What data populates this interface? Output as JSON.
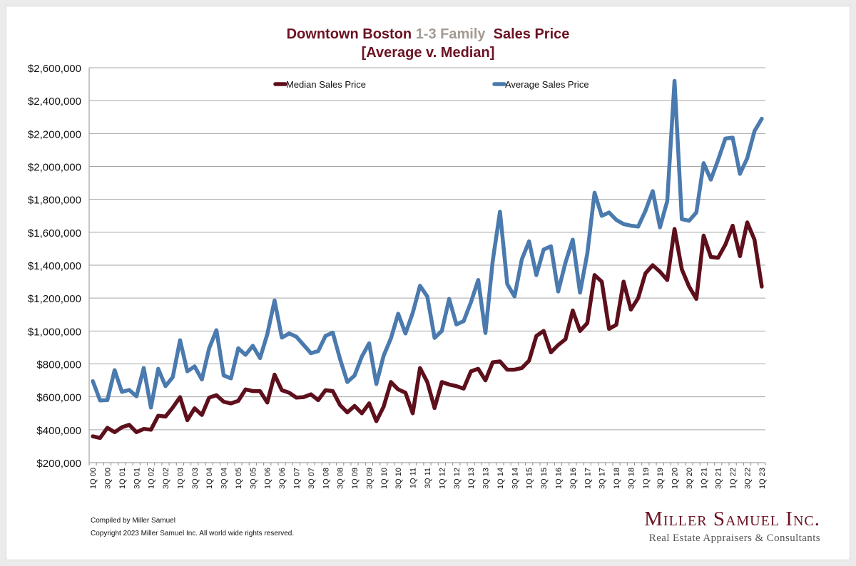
{
  "title": {
    "part1": "Downtown Boston ",
    "part2": "1-3 Family",
    "part3": "  Sales Price",
    "line2": "[Average v. Median]"
  },
  "footer": {
    "compiled": "Compiled by Miller Samuel",
    "copyright": "Copyright 2023 Miller Samuel Inc.  All world wide rights reserved."
  },
  "brand": {
    "name": "Miller Samuel Inc.",
    "tagline": "Real Estate Appraisers & Consultants"
  },
  "colors": {
    "median": "#5e0f1c",
    "average": "#4a7aae",
    "title": "#6b1222",
    "title_accent": "#a39a92",
    "grid": "#a6a6a6"
  },
  "chart_data": {
    "type": "line",
    "title": "Downtown Boston 1-3 Family  Sales Price [Average v. Median]",
    "xlabel": "",
    "ylabel": "",
    "ylim": [
      200000,
      2600000
    ],
    "yticks": [
      200000,
      400000,
      600000,
      800000,
      1000000,
      1200000,
      1400000,
      1600000,
      1800000,
      2000000,
      2200000,
      2400000,
      2600000
    ],
    "ytick_labels": [
      "$200,000",
      "$400,000",
      "$600,000",
      "$800,000",
      "$1,000,000",
      "$1,200,000",
      "$1,400,000",
      "$1,600,000",
      "$1,800,000",
      "$2,000,000",
      "$2,200,000",
      "$2,400,000",
      "$2,600,000"
    ],
    "grid": true,
    "legend_position": "top",
    "x_tick_labels": [
      "1Q 00",
      "3Q 00",
      "1Q 01",
      "3Q 01",
      "1Q 02",
      "3Q 02",
      "1Q 03",
      "3Q 03",
      "1Q 04",
      "3Q 04",
      "1Q 05",
      "3Q 05",
      "1Q 06",
      "3Q 06",
      "1Q 07",
      "3Q 07",
      "1Q 08",
      "3Q 08",
      "1Q 09",
      "3Q 09",
      "1Q 10",
      "3Q 10",
      "1Q 11",
      "3Q 11",
      "1Q 12",
      "3Q 12",
      "1Q 13",
      "3Q 13",
      "1Q 14",
      "3Q 14",
      "1Q 15",
      "3Q 15",
      "1Q 16",
      "3Q 16",
      "1Q 17",
      "3Q 17",
      "1Q 18",
      "3Q 18",
      "1Q 19",
      "3Q 19",
      "1Q 20",
      "3Q 20",
      "1Q 21",
      "3Q 21",
      "1Q 22",
      "3Q 22",
      "1Q 23"
    ],
    "series": [
      {
        "name": "Median Sales Price",
        "values": [
          360000,
          350000,
          412000,
          385000,
          415000,
          430000,
          385000,
          405000,
          400000,
          485000,
          480000,
          535000,
          598000,
          458000,
          530000,
          490000,
          595000,
          610000,
          570000,
          560000,
          575000,
          645000,
          635000,
          635000,
          565000,
          735000,
          640000,
          625000,
          595000,
          598000,
          615000,
          580000,
          640000,
          635000,
          550000,
          505000,
          545000,
          500000,
          560000,
          452000,
          540000,
          690000,
          645000,
          625000,
          500000,
          775000,
          690000,
          532000,
          690000,
          675000,
          665000,
          650000,
          755000,
          770000,
          700000,
          810000,
          815000,
          765000,
          765000,
          775000,
          820000,
          970000,
          1000000,
          870000,
          915000,
          950000,
          1125000,
          1000000,
          1048000,
          1340000,
          1300000,
          1013000,
          1038000,
          1300000,
          1130000,
          1200000,
          1350000,
          1400000,
          1360000,
          1310000,
          1620000,
          1375000,
          1270000,
          1195000,
          1580000,
          1450000,
          1445000,
          1525000,
          1640000,
          1455000,
          1660000,
          1555000,
          1270000
        ]
      },
      {
        "name": "Average Sales Price",
        "values": [
          695000,
          578000,
          580000,
          762000,
          630000,
          642000,
          603000,
          775000,
          535000,
          770000,
          665000,
          720000,
          944000,
          755000,
          785000,
          705000,
          895000,
          1005000,
          730000,
          712000,
          895000,
          855000,
          910000,
          835000,
          980000,
          1185000,
          960000,
          985000,
          965000,
          915000,
          865000,
          878000,
          970000,
          990000,
          830000,
          690000,
          730000,
          845000,
          925000,
          678000,
          850000,
          955000,
          1105000,
          985000,
          1110000,
          1275000,
          1210000,
          958000,
          1000000,
          1195000,
          1040000,
          1060000,
          1175000,
          1310000,
          988000,
          1425000,
          1725000,
          1285000,
          1210000,
          1435000,
          1545000,
          1340000,
          1495000,
          1515000,
          1240000,
          1415000,
          1555000,
          1233000,
          1470000,
          1840000,
          1700000,
          1720000,
          1675000,
          1650000,
          1640000,
          1635000,
          1730000,
          1850000,
          1630000,
          1790000,
          2520000,
          1680000,
          1670000,
          1720000,
          2020000,
          1920000,
          2040000,
          2170000,
          2175000,
          1955000,
          2050000,
          2215000,
          2290000
        ]
      }
    ]
  }
}
